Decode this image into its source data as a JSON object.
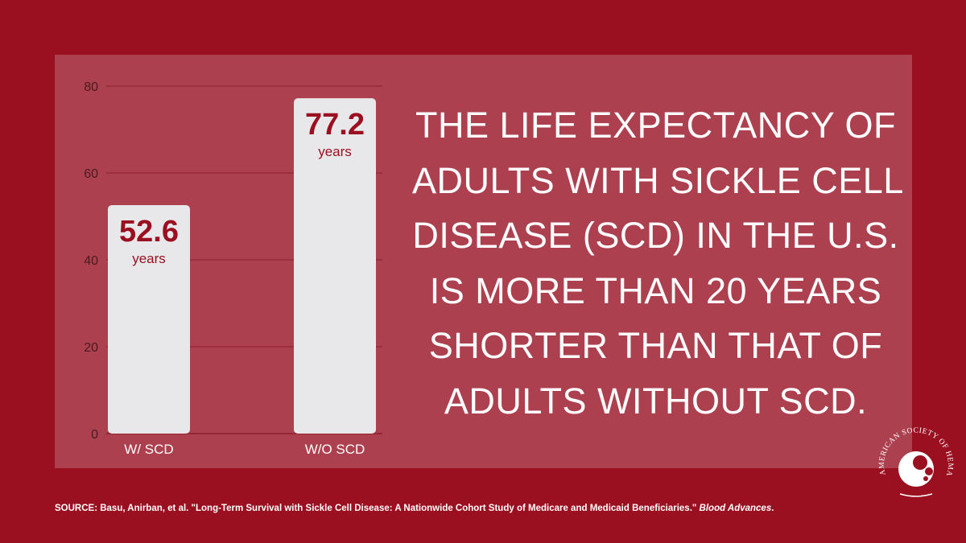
{
  "headline_lines": [
    "THE LIFE EXPECTANCY OF",
    "ADULTS WITH SICKLE CELL",
    "DISEASE (SCD) IN THE U.S.",
    "IS MORE THAN 20 YEARS",
    "SHORTER THAN THAT OF",
    "ADULTS WITHOUT SCD."
  ],
  "source": {
    "text": "SOURCE: Basu, Anirban, et al. \"Long-Term Survival with Sickle Cell Disease: A Nationwide Cohort Study of Medicare and Medicaid Beneficiaries.\"",
    "journal": "Blood Advances",
    "end": "."
  },
  "logo": {
    "text": "AMERICAN SOCIETY OF HEMATOLOGY",
    "icon": "ash-logo-icon"
  },
  "colors": {
    "background": "#9a1020",
    "panel": "#ad404e",
    "bar": "#e8e8ea",
    "value_text": "#9a1020",
    "gridline": "#8f1d2c",
    "axis_text": "#4a1a20"
  },
  "chart_data": {
    "type": "bar",
    "categories": [
      "W/ SCD",
      "W/O SCD"
    ],
    "values": [
      52.6,
      77.2
    ],
    "value_labels": [
      "52.6",
      "77.2"
    ],
    "value_unit": "years",
    "yticks": [
      0,
      20,
      40,
      60,
      80
    ],
    "ylim": [
      0,
      80
    ],
    "grid": true,
    "title": "",
    "xlabel": "",
    "ylabel": ""
  }
}
